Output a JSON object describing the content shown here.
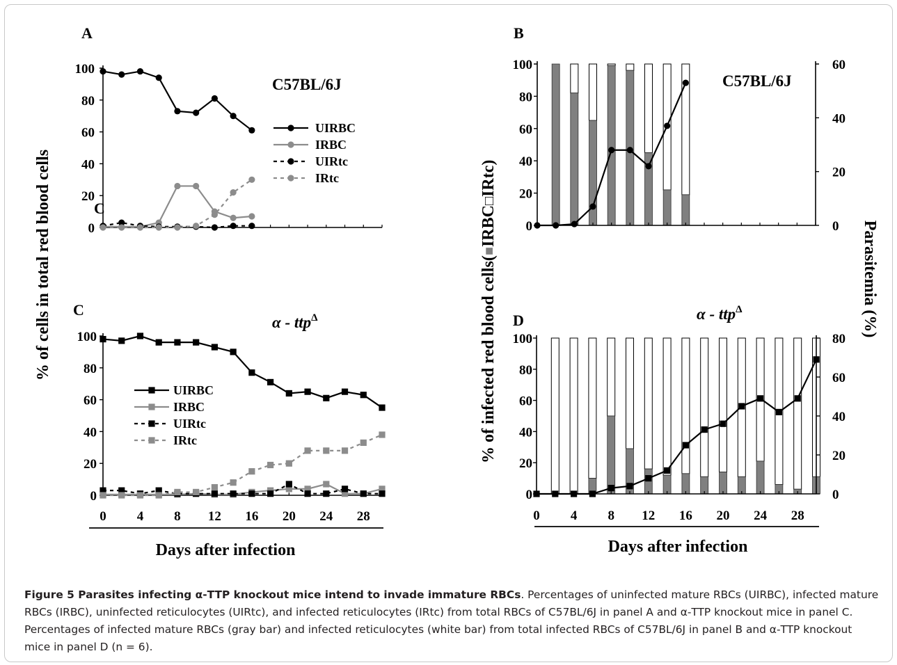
{
  "caption": {
    "heading": "Figure 5 Parasites infecting α-TTP knockout mice intend to invade immature RBCs",
    "text": ". Percentages of uninfected mature RBCs (UIRBC), infected mature RBCs (IRBC), uninfected reticulocytes (UIRtc), and infected reticulocytes (IRtc) from total RBCs of C57BL/6J in panel A and α-TTP knockout mice in panel C. Percentages of infected mature RBCs (gray bar) and infected reticulocytes (white bar) from total infected RBCs of C57BL/6J in panel B and α-TTP knockout mice in panel D (n = 6)."
  },
  "shared_labels": {
    "left_ylabel": "% of cells in total red blood cells",
    "right_ylabel_prefix": "% of infected red blood cells(",
    "right_ylabel_mid1": "IRBC",
    "right_ylabel_mid2": "IRtc",
    "right_ylabel_suffix": ")",
    "parasitemia_label": "Parasitemia (%)",
    "xlabel": "Days after infection"
  },
  "colors": {
    "black": "#000000",
    "gray": "#8c8c8c",
    "bar_gray": "#808080",
    "bar_white": "#ffffff"
  },
  "chart_data": [
    {
      "panel": "A",
      "type": "line",
      "subtitle": "C57BL/6J",
      "stray_label": "C",
      "ylim": [
        0,
        100
      ],
      "yticks": [
        0,
        20,
        40,
        60,
        80,
        100
      ],
      "x": [
        0,
        2,
        4,
        6,
        8,
        10,
        12,
        14,
        16
      ],
      "xlim": [
        0,
        30
      ],
      "legend": "right",
      "series": [
        {
          "name": "UIRBC",
          "marker": "circle",
          "dash": false,
          "color": "#000000",
          "values": [
            98,
            96,
            98,
            94,
            73,
            72,
            81,
            70,
            61
          ]
        },
        {
          "name": "IRBC",
          "marker": "circle",
          "dash": false,
          "color": "#8c8c8c",
          "values": [
            0.5,
            0.5,
            0.5,
            3,
            26,
            26,
            10,
            6,
            7
          ]
        },
        {
          "name": "UIRtc",
          "marker": "circle",
          "dash": true,
          "color": "#000000",
          "values": [
            1,
            3,
            1,
            0.5,
            0.5,
            0.5,
            0,
            1,
            1
          ]
        },
        {
          "name": "IRtc",
          "marker": "circle",
          "dash": true,
          "color": "#8c8c8c",
          "values": [
            0,
            0,
            0,
            0,
            0,
            1,
            8,
            22,
            30
          ]
        }
      ]
    },
    {
      "panel": "B",
      "type": "bar",
      "subtitle": "C57BL/6J",
      "ylim": [
        0,
        100
      ],
      "yticks": [
        0,
        20,
        40,
        60,
        80,
        100
      ],
      "y2lim": [
        0,
        60
      ],
      "y2ticks": [
        0,
        20,
        40,
        60
      ],
      "x": [
        2,
        4,
        6,
        8,
        10,
        12,
        14,
        16
      ],
      "xlim": [
        0,
        30
      ],
      "series": [
        {
          "name": "IRBC",
          "values": [
            100,
            82,
            65,
            99,
            96,
            45,
            22,
            19
          ]
        },
        {
          "name": "IRtc",
          "values": [
            0,
            18,
            35,
            1,
            4,
            55,
            78,
            81
          ]
        }
      ],
      "parasitemia": {
        "x": [
          0,
          2,
          4,
          6,
          8,
          10,
          12,
          14,
          16
        ],
        "values": [
          0,
          0,
          0.5,
          7,
          28,
          28,
          22,
          37,
          53
        ]
      }
    },
    {
      "panel": "C",
      "type": "line",
      "subtitle_main": "α - ttp",
      "subtitle_sup": "Δ",
      "ylim": [
        0,
        100
      ],
      "yticks": [
        0,
        20,
        40,
        60,
        80,
        100
      ],
      "x": [
        0,
        2,
        4,
        6,
        8,
        10,
        12,
        14,
        16,
        18,
        20,
        22,
        24,
        26,
        28,
        30
      ],
      "xticks": [
        0,
        4,
        8,
        12,
        16,
        20,
        24,
        28
      ],
      "xlim": [
        0,
        30
      ],
      "legend": "left",
      "series": [
        {
          "name": "UIRBC",
          "marker": "square",
          "dash": false,
          "color": "#000000",
          "values": [
            98,
            97,
            100,
            96,
            96,
            96,
            93,
            90,
            77,
            71,
            64,
            65,
            61,
            65,
            63,
            55
          ]
        },
        {
          "name": "IRBC",
          "marker": "square",
          "dash": false,
          "color": "#8c8c8c",
          "values": [
            0.5,
            0.5,
            0.5,
            0.5,
            0.5,
            1,
            0.5,
            0.5,
            2,
            3,
            4,
            4,
            7,
            1,
            1,
            4
          ]
        },
        {
          "name": "UIRtc",
          "marker": "square",
          "dash": true,
          "color": "#000000",
          "values": [
            3,
            3,
            1,
            3,
            1,
            1,
            1,
            1,
            1,
            1,
            7,
            1,
            1,
            4,
            1,
            1
          ]
        },
        {
          "name": "IRtc",
          "marker": "square",
          "dash": true,
          "color": "#8c8c8c",
          "values": [
            0,
            0,
            0,
            0,
            2,
            2,
            5,
            8,
            15,
            19,
            20,
            28,
            28,
            28,
            33,
            38
          ]
        }
      ]
    },
    {
      "panel": "D",
      "type": "bar",
      "subtitle_main": "α - ttp",
      "subtitle_sup": "Δ",
      "ylim": [
        0,
        100
      ],
      "yticks": [
        0,
        20,
        40,
        60,
        80,
        100
      ],
      "y2lim": [
        0,
        80
      ],
      "y2ticks": [
        0,
        20,
        40,
        60,
        80
      ],
      "x": [
        2,
        4,
        6,
        8,
        10,
        12,
        14,
        16,
        18,
        20,
        22,
        24,
        26,
        28,
        30
      ],
      "xticks": [
        0,
        4,
        8,
        12,
        16,
        20,
        24,
        28
      ],
      "xlim": [
        0,
        30
      ],
      "series": [
        {
          "name": "IRBC",
          "values": [
            0,
            0,
            10,
            50,
            29,
            16,
            12,
            13,
            11,
            14,
            11,
            21,
            6,
            3,
            11
          ]
        },
        {
          "name": "IRtc",
          "values": [
            100,
            100,
            90,
            50,
            71,
            84,
            88,
            87,
            89,
            86,
            89,
            79,
            94,
            97,
            89
          ]
        }
      ],
      "parasitemia": {
        "x": [
          0,
          2,
          4,
          6,
          8,
          10,
          12,
          14,
          16,
          18,
          20,
          22,
          24,
          26,
          28,
          30
        ],
        "values": [
          0,
          0,
          0,
          0,
          3,
          4,
          8,
          12,
          25,
          33,
          36,
          45,
          49,
          42,
          49,
          69
        ]
      }
    }
  ]
}
